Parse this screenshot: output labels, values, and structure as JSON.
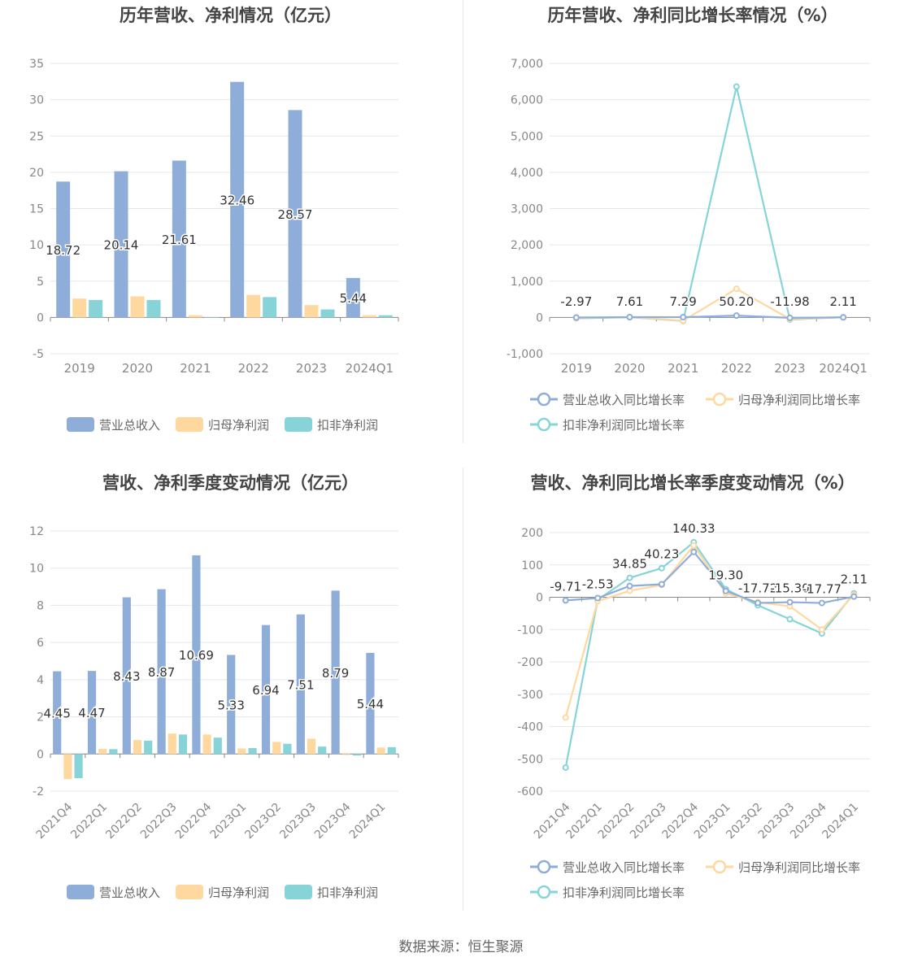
{
  "source_text": "数据来源：恒生聚源",
  "colors": {
    "revenue": "#8fadd9",
    "net_profit": "#ffd8a0",
    "deducted_profit": "#86d4d8",
    "grid": "#e4e7ef",
    "axis_text": "#888888",
    "title": "#444444"
  },
  "chart_data": [
    {
      "type": "bar",
      "title": "历年营收、净利情况（亿元）",
      "categories": [
        "2019",
        "2020",
        "2021",
        "2022",
        "2023",
        "2024Q1"
      ],
      "ylim": [
        -5,
        35
      ],
      "yticks": [
        -5,
        0,
        5,
        10,
        15,
        20,
        25,
        30,
        35
      ],
      "ytick_labels": [
        "-5",
        "0",
        "5",
        "10",
        "15",
        "20",
        "25",
        "30",
        "35"
      ],
      "series": [
        {
          "name": "营业总收入",
          "values": [
            18.72,
            20.14,
            21.61,
            32.46,
            28.57,
            5.44
          ],
          "labels": [
            "18.72",
            "20.14",
            "21.61",
            "32.46",
            "28.57",
            "5.44"
          ]
        },
        {
          "name": "归母净利润",
          "values": [
            2.6,
            2.9,
            0.3,
            3.1,
            1.7,
            0.3
          ]
        },
        {
          "name": "扣非净利润",
          "values": [
            2.4,
            2.4,
            0.05,
            2.8,
            1.1,
            0.3
          ]
        }
      ],
      "legend": "bottom",
      "grid": true
    },
    {
      "type": "line",
      "title": "历年营收、净利同比增长率情况（%）",
      "categories": [
        "2019",
        "2020",
        "2021",
        "2022",
        "2023",
        "2024Q1"
      ],
      "ylim": [
        -1000,
        7000
      ],
      "yticks": [
        -1000,
        0,
        1000,
        2000,
        3000,
        4000,
        5000,
        6000,
        7000
      ],
      "ytick_labels": [
        "-1,000",
        "0",
        "1,000",
        "2,000",
        "3,000",
        "4,000",
        "5,000",
        "6,000",
        "7,000"
      ],
      "series": [
        {
          "name": "营业总收入同比增长率",
          "values": [
            -2.97,
            7.61,
            7.29,
            50.2,
            -11.98,
            2.11
          ],
          "labels": [
            "-2.97",
            "7.61",
            "7.29",
            "50.20",
            "-11.98",
            "2.11"
          ]
        },
        {
          "name": "归母净利润同比增长率",
          "values": [
            -20,
            10,
            -90,
            790,
            -45,
            5
          ]
        },
        {
          "name": "扣非净利润同比增长率",
          "values": [
            -25,
            5,
            -98,
            6360,
            -60,
            8
          ]
        }
      ],
      "legend": "bottom",
      "grid": true
    },
    {
      "type": "bar",
      "title": "营收、净利季度变动情况（亿元）",
      "categories": [
        "2021Q4",
        "2022Q1",
        "2022Q2",
        "2022Q3",
        "2022Q4",
        "2023Q1",
        "2023Q2",
        "2023Q3",
        "2023Q4",
        "2024Q1"
      ],
      "ylim": [
        -2,
        12
      ],
      "yticks": [
        -2,
        0,
        2,
        4,
        6,
        8,
        10,
        12
      ],
      "ytick_labels": [
        "-2",
        "0",
        "2",
        "4",
        "6",
        "8",
        "10",
        "12"
      ],
      "series": [
        {
          "name": "营业总收入",
          "values": [
            4.45,
            4.47,
            8.43,
            8.87,
            10.69,
            5.33,
            6.94,
            7.51,
            8.79,
            5.44
          ],
          "labels": [
            "4.45",
            "4.47",
            "8.43",
            "8.87",
            "10.69",
            "5.33",
            "6.94",
            "7.51",
            "8.79",
            "5.44"
          ]
        },
        {
          "name": "归母净利润",
          "values": [
            -1.35,
            0.28,
            0.75,
            1.1,
            1.05,
            0.3,
            0.65,
            0.82,
            -0.05,
            0.35
          ]
        },
        {
          "name": "扣非净利润",
          "values": [
            -1.3,
            0.26,
            0.72,
            1.05,
            0.88,
            0.32,
            0.55,
            0.4,
            -0.08,
            0.37
          ]
        }
      ],
      "legend": "bottom",
      "grid": true
    },
    {
      "type": "line",
      "title": "营收、净利同比增长率季度变动情况（%）",
      "categories": [
        "2021Q4",
        "2022Q1",
        "2022Q2",
        "2022Q3",
        "2022Q4",
        "2023Q1",
        "2023Q2",
        "2023Q3",
        "2023Q4",
        "2024Q1"
      ],
      "ylim": [
        -600,
        200
      ],
      "yticks": [
        -600,
        -500,
        -400,
        -300,
        -200,
        -100,
        0,
        100,
        200
      ],
      "ytick_labels": [
        "-600",
        "-500",
        "-400",
        "-300",
        "-200",
        "-100",
        "0",
        "100",
        "200"
      ],
      "series": [
        {
          "name": "营业总收入同比增长率",
          "values": [
            -9.71,
            -2.53,
            34.85,
            40.23,
            140.33,
            19.3,
            -17.72,
            -15.3,
            -17.77,
            2.11
          ],
          "labels": [
            "-9.71",
            "-2.53",
            "34.85",
            "40.23",
            "140.33",
            "19.30",
            "-17.72",
            "-15.30",
            "-17.77",
            "2.11"
          ]
        },
        {
          "name": "归母净利润同比增长率",
          "values": [
            -372,
            -12,
            20,
            38,
            160,
            12,
            -15,
            -28,
            -100,
            8
          ]
        },
        {
          "name": "扣非净利润同比增长率",
          "values": [
            -527,
            -8,
            60,
            90,
            170,
            25,
            -25,
            -68,
            -112,
            12
          ]
        }
      ],
      "legend": "bottom",
      "grid": true
    }
  ]
}
